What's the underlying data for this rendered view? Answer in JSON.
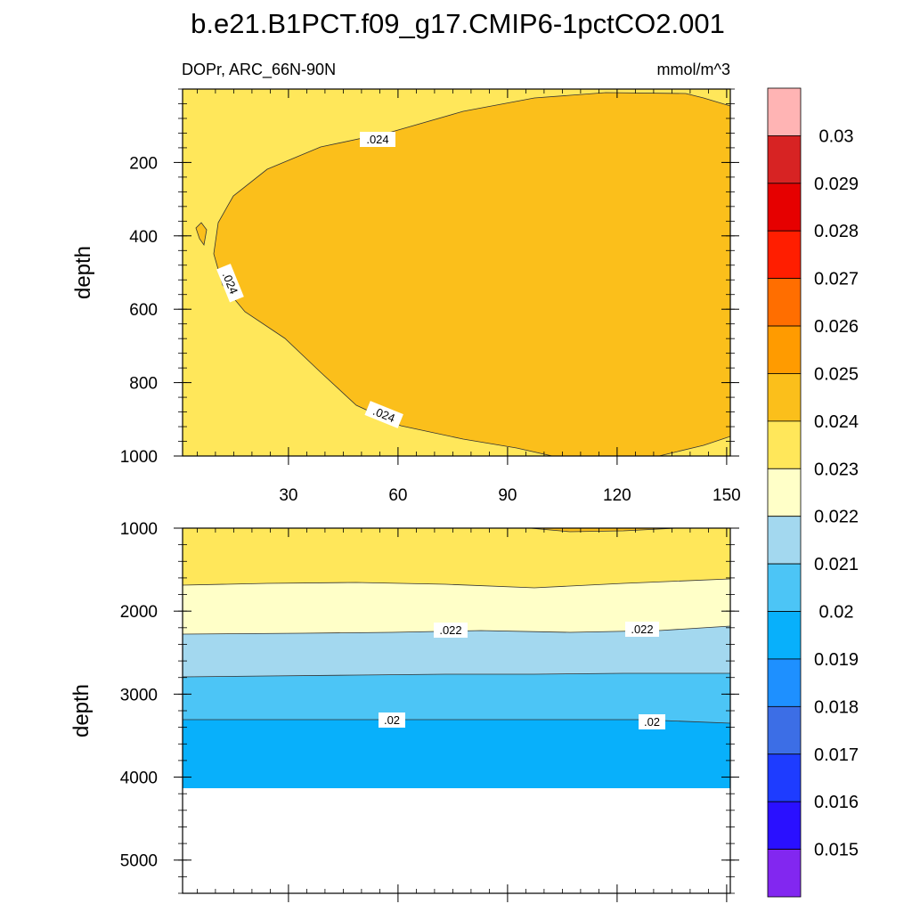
{
  "chart_data": {
    "type": "contour",
    "title": "b.e21.B1PCT.f09_g17.CMIP6-1pctCO2.001",
    "left_string": "DOPr, ARC_66N-90N",
    "right_string": "mmol/m^3",
    "xlim": [
      1,
      151
    ],
    "x_ticks": [
      "30",
      "60",
      "90",
      "120",
      "150"
    ],
    "panels": [
      {
        "name": "upper",
        "ylabel": "depth",
        "ylim": [
          0,
          1000
        ],
        "y_ticks": [
          "200",
          "400",
          "600",
          "800",
          "1000"
        ],
        "contour_labels": [
          ".024",
          ".024",
          ".024"
        ],
        "regions": [
          {
            "level_range": [
              0.023,
              0.024
            ],
            "where": "background (surface layer and western/northern edges)"
          },
          {
            "level_range": [
              0.024,
              0.025
            ],
            "where": "core from ~x10 to 151, depth ~30 to 1000"
          }
        ]
      },
      {
        "name": "lower",
        "ylabel": "depth",
        "ylim": [
          1000,
          5400
        ],
        "y_ticks": [
          "1000",
          "2000",
          "3000",
          "4000",
          "5000"
        ],
        "contour_labels": [
          ".022",
          ".022",
          ".02",
          ".02"
        ],
        "bands": [
          {
            "level_range": [
              0.023,
              0.024
            ],
            "depth_top": 1000,
            "depth_bottom": 1700
          },
          {
            "level_range": [
              0.022,
              0.023
            ],
            "depth_top": 1700,
            "depth_bottom": 2250
          },
          {
            "level_range": [
              0.021,
              0.022
            ],
            "depth_top": 2250,
            "depth_bottom": 2750
          },
          {
            "level_range": [
              0.02,
              0.021
            ],
            "depth_top": 2750,
            "depth_bottom": 3300
          },
          {
            "level_range": [
              0.019,
              0.02
            ],
            "depth_top": 3300,
            "depth_bottom": 4120
          },
          {
            "level_range": "missing",
            "depth_top": 4120,
            "depth_bottom": 5400
          }
        ]
      }
    ],
    "colorbar": {
      "labels": [
        "0.03",
        "0.029",
        "0.028",
        "0.027",
        "0.026",
        "0.025",
        "0.024",
        "0.023",
        "0.022",
        "0.021",
        "0.02",
        "0.019",
        "0.018",
        "0.017",
        "0.016",
        "0.015"
      ],
      "colors": [
        "#ffb4b4",
        "#d72323",
        "#e60000",
        "#ff1e00",
        "#ff6e00",
        "#ff9b00",
        "#fbbf1b",
        "#ffe75a",
        "#ffffc8",
        "#a3d8ef",
        "#4cc5f6",
        "#08b0fb",
        "#1e90ff",
        "#3c6ee6",
        "#1e3cff",
        "#2a10ff",
        "#8227f0"
      ]
    }
  }
}
